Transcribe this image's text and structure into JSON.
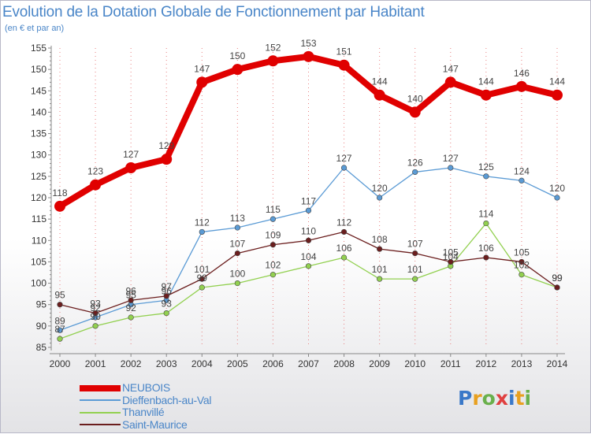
{
  "title": "Evolution de la Dotation Globale de Fonctionnement par Habitant",
  "subtitle": "(en € et par an)",
  "logo": {
    "text": "Proxiti",
    "colors": [
      "#3a78c8",
      "#e8a020",
      "#6ab04c",
      "#e04040",
      "#3a78c8",
      "#e8a020",
      "#6ab04c"
    ]
  },
  "colors": {
    "text": "#4a86c8",
    "axis": "#888888",
    "grid_dots": "#e88080"
  },
  "chart_data": {
    "type": "line",
    "x": [
      "2000",
      "2001",
      "2002",
      "2003",
      "2004",
      "2005",
      "2006",
      "2007",
      "2008",
      "2009",
      "2010",
      "2011",
      "2012",
      "2013",
      "2014"
    ],
    "ylim": [
      85,
      155
    ],
    "yticks": [
      "85",
      "90",
      "95",
      "100",
      "105",
      "110",
      "115",
      "120",
      "125",
      "130",
      "135",
      "140",
      "145",
      "150",
      "155"
    ],
    "legend_position": "bottom-left",
    "series": [
      {
        "name": "NEUBOIS",
        "color": "#e00000",
        "values": [
          118,
          123,
          127,
          129,
          147,
          150,
          152,
          153,
          151,
          144,
          140,
          147,
          144,
          146,
          144
        ],
        "labels": [
          "118",
          "123",
          "127",
          "129",
          "147",
          "150",
          "152",
          "153",
          "151",
          "144",
          "140",
          "147",
          "144",
          "146",
          "144"
        ]
      },
      {
        "name": "Dieffenbach-au-Val",
        "color": "#5b9bd5",
        "values": [
          89,
          92,
          95,
          96,
          112,
          113,
          115,
          117,
          127,
          120,
          126,
          127,
          125,
          124,
          120
        ],
        "labels": [
          "89",
          "92",
          "95",
          "96",
          "112",
          "113",
          "115",
          "117",
          "127",
          "120",
          "126",
          "127",
          "125",
          "124",
          "120"
        ]
      },
      {
        "name": "Thanvillé",
        "color": "#92d050",
        "values": [
          87,
          90,
          92,
          93,
          99,
          100,
          102,
          104,
          106,
          101,
          101,
          104,
          114,
          102,
          99
        ],
        "labels": [
          "87",
          "90",
          "92",
          "93",
          "99",
          "100",
          "102",
          "104",
          "106",
          "101",
          "101",
          "104",
          "114",
          "102",
          "99"
        ]
      },
      {
        "name": "Saint-Maurice",
        "color": "#6b1e1e",
        "values": [
          95,
          93,
          96,
          97,
          101,
          107,
          109,
          110,
          112,
          108,
          107,
          105,
          106,
          105,
          99
        ],
        "labels": [
          "95",
          "93",
          "96",
          "97",
          "101",
          "107",
          "109",
          "110",
          "112",
          "108",
          "107",
          "105",
          "106",
          "105",
          "99"
        ]
      }
    ]
  }
}
